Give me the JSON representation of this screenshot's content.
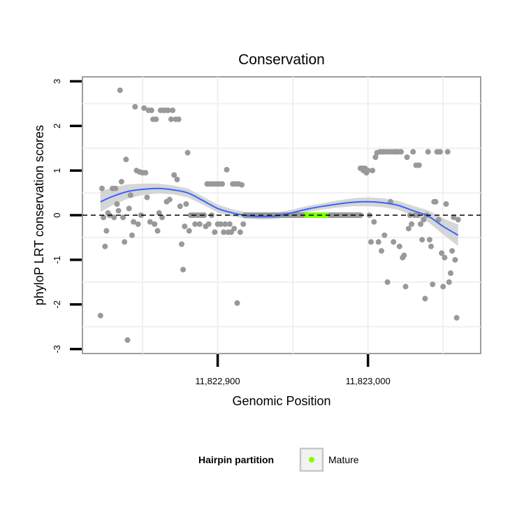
{
  "chart_data": {
    "type": "scatter",
    "title": "Conservation",
    "xlabel": "Genomic Position",
    "ylabel": "phyloP LRT conservation scores",
    "xlim": [
      11822810,
      11823075
    ],
    "ylim": [
      -3.1,
      3.1
    ],
    "xticks": [
      {
        "value": 11822900,
        "label": "11,822,900"
      },
      {
        "value": 11823000,
        "label": "11,823,000"
      }
    ],
    "yticks": [
      {
        "value": 3,
        "label": "3"
      },
      {
        "value": 2,
        "label": "2"
      },
      {
        "value": 1,
        "label": "1"
      },
      {
        "value": 0,
        "label": "0"
      },
      {
        "value": -1,
        "label": "-1"
      },
      {
        "value": -2,
        "label": "-2"
      },
      {
        "value": -3,
        "label": "-3"
      }
    ],
    "reference_line": {
      "y": 0,
      "style": "dashed"
    },
    "points": [
      [
        11822822,
        -2.25
      ],
      [
        11822823,
        0.6
      ],
      [
        11822824,
        -0.05
      ],
      [
        11822825,
        -0.7
      ],
      [
        11822826,
        -0.35
      ],
      [
        11822827,
        0.05
      ],
      [
        11822828,
        0.0
      ],
      [
        11822830,
        0.6
      ],
      [
        11822831,
        -0.05
      ],
      [
        11822832,
        0.6
      ],
      [
        11822833,
        0.25
      ],
      [
        11822834,
        0.1
      ],
      [
        11822835,
        2.8
      ],
      [
        11822836,
        0.75
      ],
      [
        11822837,
        -0.05
      ],
      [
        11822838,
        -0.6
      ],
      [
        11822839,
        1.25
      ],
      [
        11822840,
        -2.8
      ],
      [
        11822841,
        0.15
      ],
      [
        11822842,
        0.45
      ],
      [
        11822843,
        -0.45
      ],
      [
        11822844,
        -0.15
      ],
      [
        11822845,
        2.43
      ],
      [
        11822846,
        1.0
      ],
      [
        11822847,
        -0.2
      ],
      [
        11822848,
        0.97
      ],
      [
        11822849,
        0.0
      ],
      [
        11822850,
        0.95
      ],
      [
        11822851,
        2.4
      ],
      [
        11822852,
        0.95
      ],
      [
        11822853,
        0.4
      ],
      [
        11822854,
        2.35
      ],
      [
        11822855,
        -0.15
      ],
      [
        11822856,
        2.35
      ],
      [
        11822857,
        2.15
      ],
      [
        11822858,
        -0.2
      ],
      [
        11822859,
        2.15
      ],
      [
        11822860,
        -0.35
      ],
      [
        11822861,
        0.05
      ],
      [
        11822862,
        2.35
      ],
      [
        11822863,
        -0.05
      ],
      [
        11822864,
        2.35
      ],
      [
        11822865,
        2.35
      ],
      [
        11822866,
        0.3
      ],
      [
        11822867,
        2.35
      ],
      [
        11822868,
        0.35
      ],
      [
        11822869,
        2.15
      ],
      [
        11822870,
        2.35
      ],
      [
        11822871,
        0.9
      ],
      [
        11822872,
        2.15
      ],
      [
        11822873,
        0.8
      ],
      [
        11822874,
        2.15
      ],
      [
        11822875,
        0.2
      ],
      [
        11822876,
        -0.65
      ],
      [
        11822877,
        -1.22
      ],
      [
        11822878,
        -0.25
      ],
      [
        11822879,
        0.25
      ],
      [
        11822880,
        1.4
      ],
      [
        11822881,
        -0.35
      ],
      [
        11822882,
        0.0
      ],
      [
        11822883,
        0.0
      ],
      [
        11822884,
        0.0
      ],
      [
        11822885,
        -0.2
      ],
      [
        11822886,
        0.0
      ],
      [
        11822887,
        0.0
      ],
      [
        11822888,
        -0.2
      ],
      [
        11822889,
        0.0
      ],
      [
        11822890,
        0.0
      ],
      [
        11822891,
        0.0
      ],
      [
        11822892,
        -0.25
      ],
      [
        11822893,
        0.7
      ],
      [
        11822894,
        -0.2
      ],
      [
        11822895,
        0.7
      ],
      [
        11822896,
        0.0
      ],
      [
        11822897,
        0.7
      ],
      [
        11822898,
        -0.38
      ],
      [
        11822899,
        0.7
      ],
      [
        11822900,
        -0.2
      ],
      [
        11822901,
        0.7
      ],
      [
        11822902,
        -0.2
      ],
      [
        11822903,
        0.7
      ],
      [
        11822904,
        -0.38
      ],
      [
        11822905,
        -0.2
      ],
      [
        11822906,
        1.02
      ],
      [
        11822907,
        -0.38
      ],
      [
        11822908,
        -0.2
      ],
      [
        11822909,
        -0.38
      ],
      [
        11822910,
        0.7
      ],
      [
        11822911,
        -0.3
      ],
      [
        11822912,
        0.7
      ],
      [
        11822913,
        -1.97
      ],
      [
        11822914,
        0.7
      ],
      [
        11822915,
        -0.38
      ],
      [
        11822916,
        0.68
      ],
      [
        11822917,
        -0.2
      ],
      [
        11822918,
        0.0
      ],
      [
        11822922,
        0.0
      ],
      [
        11822928,
        0.0
      ],
      [
        11822935,
        0.0
      ],
      [
        11822942,
        0.0
      ],
      [
        11822950,
        0.0
      ],
      [
        11822958,
        0.0
      ],
      [
        11822980,
        0.0
      ],
      [
        11822985,
        0.0
      ],
      [
        11822990,
        0.0
      ],
      [
        11822995,
        1.05
      ],
      [
        11822996,
        1.05
      ],
      [
        11822997,
        1.0
      ],
      [
        11822998,
        1.05
      ],
      [
        11822999,
        0.95
      ],
      [
        11823000,
        1.0
      ],
      [
        11823001,
        0.0
      ],
      [
        11823002,
        -0.6
      ],
      [
        11823003,
        1.0
      ],
      [
        11823004,
        -0.15
      ],
      [
        11823005,
        1.3
      ],
      [
        11823006,
        1.4
      ],
      [
        11823007,
        -0.6
      ],
      [
        11823008,
        1.42
      ],
      [
        11823009,
        -0.8
      ],
      [
        11823010,
        1.42
      ],
      [
        11823011,
        -0.45
      ],
      [
        11823012,
        1.42
      ],
      [
        11823013,
        -1.5
      ],
      [
        11823014,
        1.42
      ],
      [
        11823015,
        0.3
      ],
      [
        11823016,
        1.42
      ],
      [
        11823017,
        -0.6
      ],
      [
        11823018,
        1.42
      ],
      [
        11823019,
        1.42
      ],
      [
        11823020,
        1.42
      ],
      [
        11823021,
        -0.7
      ],
      [
        11823022,
        1.42
      ],
      [
        11823023,
        -0.95
      ],
      [
        11823024,
        -0.9
      ],
      [
        11823025,
        -1.6
      ],
      [
        11823026,
        1.3
      ],
      [
        11823027,
        -0.3
      ],
      [
        11823028,
        0.0
      ],
      [
        11823029,
        -0.2
      ],
      [
        11823030,
        1.42
      ],
      [
        11823031,
        0.0
      ],
      [
        11823032,
        1.12
      ],
      [
        11823033,
        0.0
      ],
      [
        11823034,
        1.12
      ],
      [
        11823035,
        -0.2
      ],
      [
        11823036,
        -0.55
      ],
      [
        11823037,
        -0.1
      ],
      [
        11823038,
        -1.87
      ],
      [
        11823039,
        0.0
      ],
      [
        11823040,
        1.42
      ],
      [
        11823041,
        -0.55
      ],
      [
        11823042,
        -0.7
      ],
      [
        11823043,
        -1.55
      ],
      [
        11823044,
        0.3
      ],
      [
        11823045,
        0.3
      ],
      [
        11823046,
        1.42
      ],
      [
        11823047,
        -0.1
      ],
      [
        11823048,
        1.42
      ],
      [
        11823049,
        -0.85
      ],
      [
        11823050,
        -1.6
      ],
      [
        11823051,
        -0.95
      ],
      [
        11823052,
        0.25
      ],
      [
        11823053,
        1.42
      ],
      [
        11823054,
        -1.5
      ],
      [
        11823055,
        -1.3
      ],
      [
        11823056,
        -0.8
      ],
      [
        11823057,
        -0.05
      ],
      [
        11823058,
        -1.0
      ],
      [
        11823059,
        -2.3
      ],
      [
        11823060,
        -0.1
      ]
    ],
    "flat_segments": [
      {
        "x0": 11822918,
        "x1": 11822958,
        "y": 0.0,
        "color": "#999999"
      },
      {
        "x0": 11822959,
        "x1": 11822975,
        "y": 0.0,
        "color": "#7fff00"
      },
      {
        "x0": 11822975,
        "x1": 11822995,
        "y": 0.0,
        "color": "#999999"
      }
    ],
    "smooth_fit": {
      "color": "#3366ff",
      "x": [
        11822822,
        11822830,
        11822840,
        11822850,
        11822860,
        11822870,
        11822880,
        11822890,
        11822900,
        11822910,
        11822920,
        11822930,
        11822940,
        11822950,
        11822960,
        11822970,
        11822980,
        11822990,
        11823000,
        11823010,
        11823020,
        11823030,
        11823040,
        11823050,
        11823060
      ],
      "y": [
        0.3,
        0.42,
        0.53,
        0.58,
        0.6,
        0.57,
        0.5,
        0.33,
        0.15,
        0.05,
        -0.01,
        -0.03,
        -0.01,
        0.06,
        0.14,
        0.2,
        0.25,
        0.29,
        0.3,
        0.28,
        0.22,
        0.1,
        -0.02,
        -0.25,
        -0.45
      ],
      "ci_half_width": [
        0.23,
        0.2,
        0.16,
        0.13,
        0.11,
        0.1,
        0.1,
        0.09,
        0.09,
        0.08,
        0.07,
        0.07,
        0.07,
        0.07,
        0.07,
        0.07,
        0.08,
        0.09,
        0.1,
        0.1,
        0.1,
        0.11,
        0.13,
        0.18,
        0.24
      ]
    },
    "legend": {
      "title": "Hairpin partition",
      "items": [
        {
          "label": "Mature",
          "color": "#7fff00"
        }
      ],
      "position": "bottom"
    },
    "grid": true
  }
}
